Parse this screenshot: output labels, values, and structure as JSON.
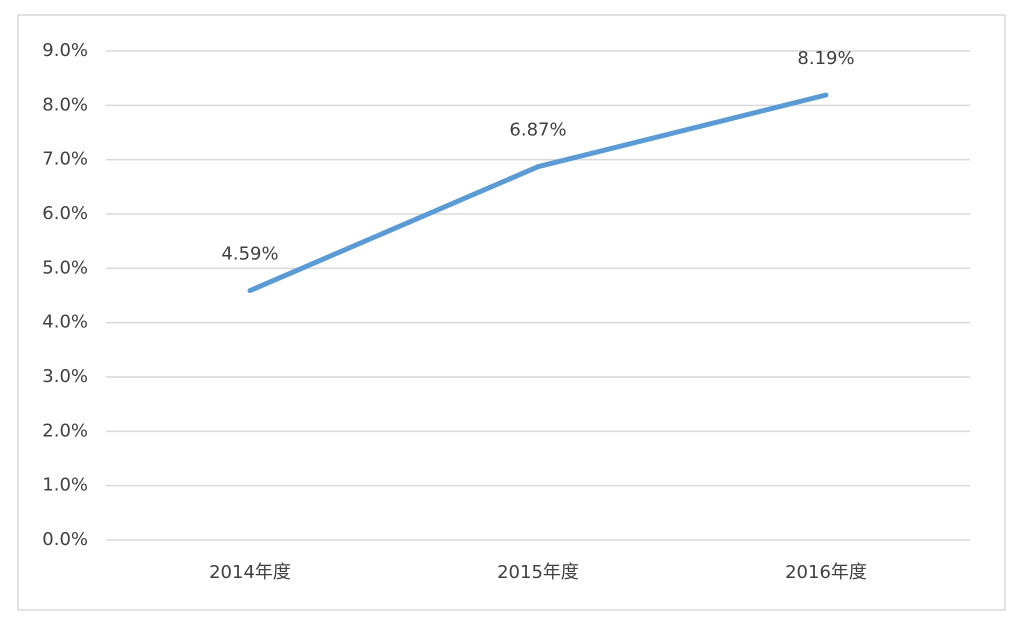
{
  "chart_data": {
    "type": "line",
    "categories": [
      "2014年度",
      "2015年度",
      "2016年度"
    ],
    "values": [
      4.59,
      6.87,
      8.19
    ],
    "value_labels": [
      "4.59%",
      "6.87%",
      "8.19%"
    ],
    "color": "#5b9bd5",
    "ylim": [
      0,
      9
    ],
    "yticks": [
      {
        "value": 0,
        "label": "0.0%"
      },
      {
        "value": 1,
        "label": "1.0%"
      },
      {
        "value": 2,
        "label": "2.0%"
      },
      {
        "value": 3,
        "label": "3.0%"
      },
      {
        "value": 4,
        "label": "4.0%"
      },
      {
        "value": 5,
        "label": "5.0%"
      },
      {
        "value": 6,
        "label": "6.0%"
      },
      {
        "value": 7,
        "label": "7.0%"
      },
      {
        "value": 8,
        "label": "8.0%"
      },
      {
        "value": 9,
        "label": "9.0%"
      }
    ],
    "grid": true
  }
}
